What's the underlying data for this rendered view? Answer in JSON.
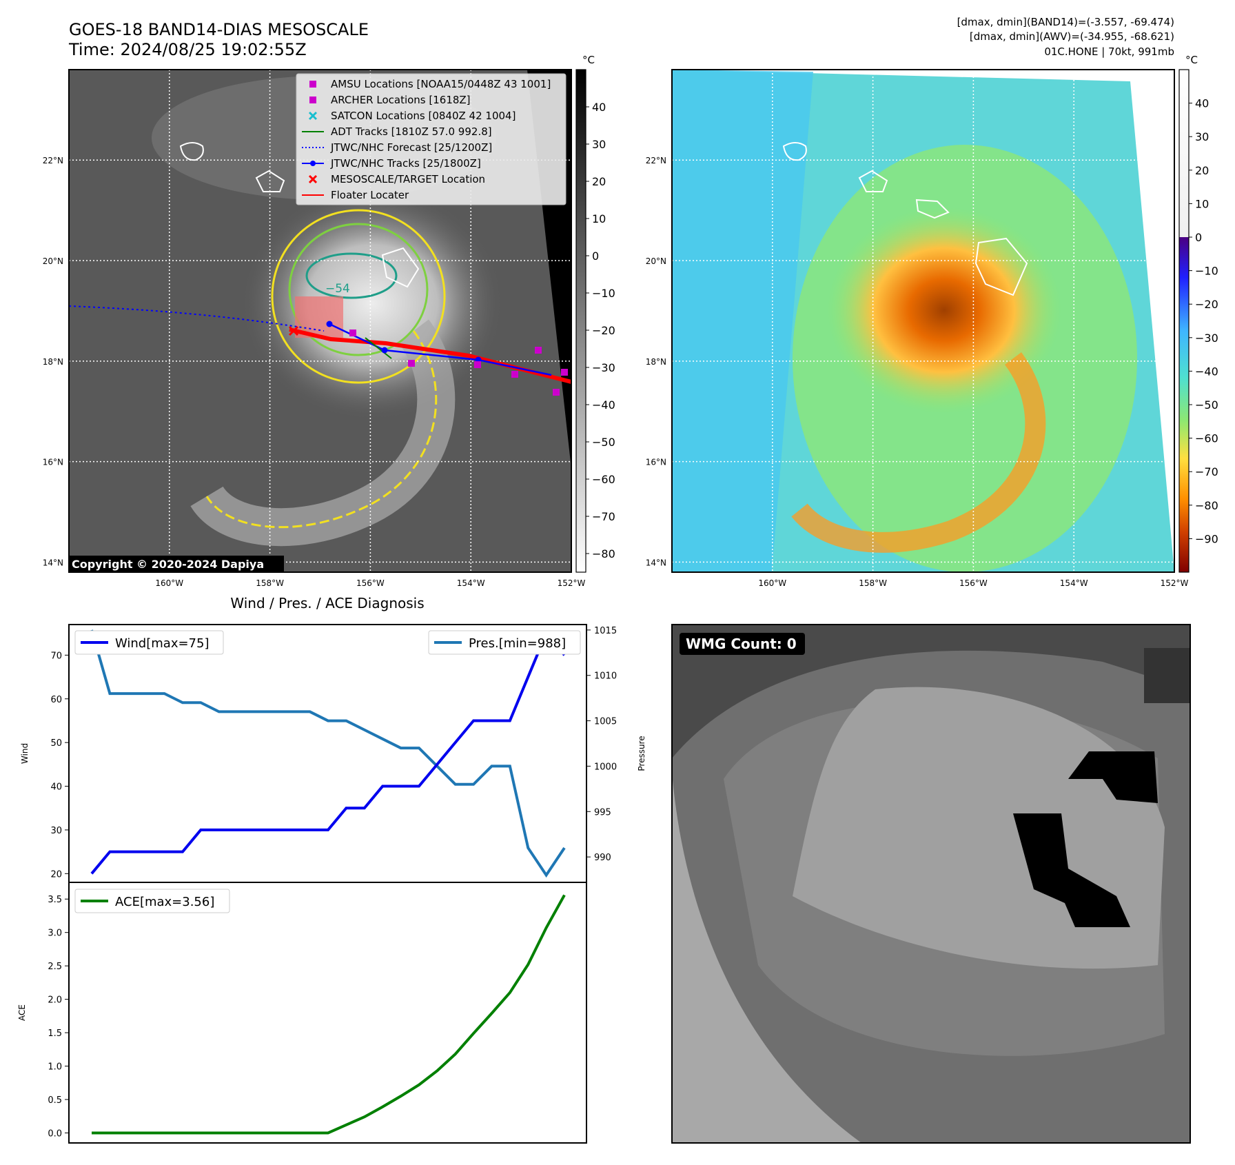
{
  "header": {
    "title_line1": "GOES-18 BAND14-DIAS MESOSCALE",
    "title_line2": "Time: 2024/08/25 19:02:55Z",
    "stats_line1": "[dmax, dmin](BAND14)=(-3.557, -69.474)",
    "stats_line2": "[dmax, dmin](AWV)=(-34.955, -68.621)",
    "stats_line3": "01C.HONE | 70kt, 991mb"
  },
  "copyright": "Copyright © 2020-2024 Dapiya",
  "map": {
    "lat_labels": [
      "22°N",
      "20°N",
      "18°N",
      "16°N",
      "14°N"
    ],
    "lat_values": [
      22,
      20,
      18,
      16,
      14
    ],
    "lon_labels": [
      "160°W",
      "158°W",
      "156°W",
      "154°W",
      "152°W"
    ],
    "lon_values": [
      -160,
      -158,
      -156,
      -154,
      -152
    ],
    "lon_range": [
      -162,
      -152
    ],
    "lat_range": [
      13.8,
      23.8
    ],
    "contour_label": "−54"
  },
  "legend": {
    "items": [
      {
        "label": "AMSU Locations [NOAA15/0448Z 43 1001]",
        "marker": "square",
        "color": "#cc00cc"
      },
      {
        "label": "ARCHER Locations [1618Z]",
        "marker": "square",
        "color": "#cc00cc"
      },
      {
        "label": "SATCON Locations [0840Z 42 1004]",
        "marker": "x",
        "color": "#17becf"
      },
      {
        "label": "ADT Tracks [1810Z 57.0 992.8]",
        "marker": "line",
        "color": "#008000"
      },
      {
        "label": "JTWC/NHC Forecast [25/1200Z]",
        "marker": "dotted",
        "color": "#0000ff"
      },
      {
        "label": "JTWC/NHC Tracks [25/1800Z]",
        "marker": "line-dot",
        "color": "#0000ff"
      },
      {
        "label": "MESOSCALE/TARGET Location",
        "marker": "x",
        "color": "#ff0000"
      },
      {
        "label": "Floater Locater",
        "marker": "line",
        "color": "#ff0000"
      }
    ]
  },
  "colorbar_gray": {
    "unit": "°C",
    "ticks": [
      "40",
      "30",
      "20",
      "10",
      "0",
      "−10",
      "−20",
      "−30",
      "−40",
      "−50",
      "−60",
      "−70",
      "−80"
    ],
    "tick_values": [
      40,
      30,
      20,
      10,
      0,
      -10,
      -20,
      -30,
      -40,
      -50,
      -60,
      -70,
      -80
    ],
    "range": [
      -85,
      50
    ]
  },
  "colorbar_color": {
    "unit": "°C",
    "ticks": [
      "40",
      "30",
      "20",
      "10",
      "0",
      "−10",
      "−20",
      "−30",
      "−40",
      "−50",
      "−60",
      "−70",
      "−80",
      "−90"
    ],
    "tick_values": [
      40,
      30,
      20,
      10,
      0,
      -10,
      -20,
      -30,
      -40,
      -50,
      -60,
      -70,
      -80,
      -90
    ],
    "range": [
      -100,
      50
    ]
  },
  "diagnosis": {
    "title": "Wind / Pres. / ACE Diagnosis",
    "wind_ylabel": "Wind",
    "pres_ylabel": "Pressure",
    "ace_ylabel": "ACE",
    "wind_legend": "Wind[max=75]",
    "pres_legend": "Pres.[min=988]",
    "ace_legend": "ACE[max=3.56]",
    "wind_ticks": [
      "70",
      "60",
      "50",
      "40",
      "30",
      "20"
    ],
    "pres_ticks": [
      "1015",
      "1010",
      "1005",
      "1000",
      "995",
      "990"
    ],
    "ace_ticks": [
      "3.5",
      "3.0",
      "2.5",
      "2.0",
      "1.5",
      "1.0",
      "0.5",
      "0.0"
    ]
  },
  "chart_data": [
    {
      "type": "line",
      "series": [
        {
          "name": "Wind[max=75]",
          "color": "#0000ee",
          "values": [
            20,
            25,
            25,
            25,
            25,
            25,
            30,
            30,
            30,
            30,
            30,
            30,
            30,
            30,
            35,
            35,
            40,
            40,
            40,
            45,
            50,
            55,
            55,
            55,
            65,
            75,
            70
          ]
        },
        {
          "name": "Pres.[min=988]",
          "color": "#1f77b4",
          "values": [
            1015,
            1008,
            1008,
            1008,
            1008,
            1007,
            1007,
            1006,
            1006,
            1006,
            1006,
            1006,
            1006,
            1005,
            1005,
            1004,
            1003,
            1002,
            1002,
            1000,
            998,
            998,
            1000,
            1000,
            991,
            988,
            991
          ]
        }
      ],
      "ylim_wind": [
        18,
        77
      ],
      "ylim_pres": [
        987.2,
        1015.6
      ]
    },
    {
      "type": "line",
      "series": [
        {
          "name": "ACE[max=3.56]",
          "color": "#008000",
          "values": [
            0,
            0,
            0,
            0,
            0,
            0,
            0,
            0,
            0,
            0,
            0,
            0,
            0,
            0,
            0.12,
            0.24,
            0.39,
            0.55,
            0.72,
            0.93,
            1.18,
            1.49,
            1.79,
            2.1,
            2.52,
            3.07,
            3.56
          ]
        }
      ],
      "ylim": [
        -0.15,
        3.75
      ]
    }
  ],
  "wmg": {
    "label": "WMG Count: 0"
  }
}
